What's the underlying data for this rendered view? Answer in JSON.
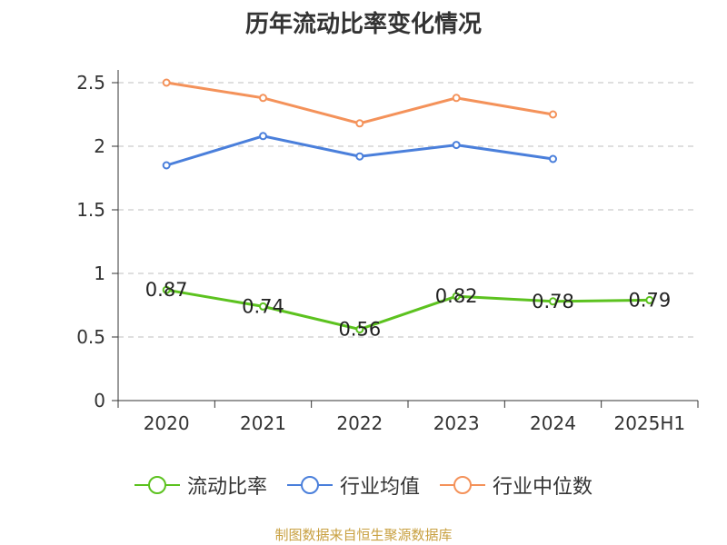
{
  "chart_data": {
    "type": "line",
    "title": "历年流动比率变化情况",
    "categories": [
      "2020",
      "2021",
      "2022",
      "2023",
      "2024",
      "2025H1"
    ],
    "ylim": [
      0,
      2.5
    ],
    "yticks": [
      "0",
      "0.5",
      "1",
      "1.5",
      "2",
      "2.5"
    ],
    "grid": true,
    "legend_position": "bottom",
    "series": [
      {
        "name": "流动比率",
        "color": "#5cc21f",
        "labels": true,
        "values": [
          0.87,
          0.74,
          0.56,
          0.82,
          0.78,
          0.79
        ],
        "value_labels": [
          "0.87",
          "0.74",
          "0.56",
          "0.82",
          "0.78",
          "0.79"
        ]
      },
      {
        "name": "行业均值",
        "color": "#4a7fdb",
        "labels": false,
        "values": [
          1.85,
          2.08,
          1.92,
          2.01,
          1.9,
          null
        ]
      },
      {
        "name": "行业中位数",
        "color": "#f4925a",
        "labels": false,
        "values": [
          2.5,
          2.38,
          2.18,
          2.38,
          2.25,
          null
        ]
      }
    ]
  },
  "source_note": "制图数据来自恒生聚源数据库"
}
